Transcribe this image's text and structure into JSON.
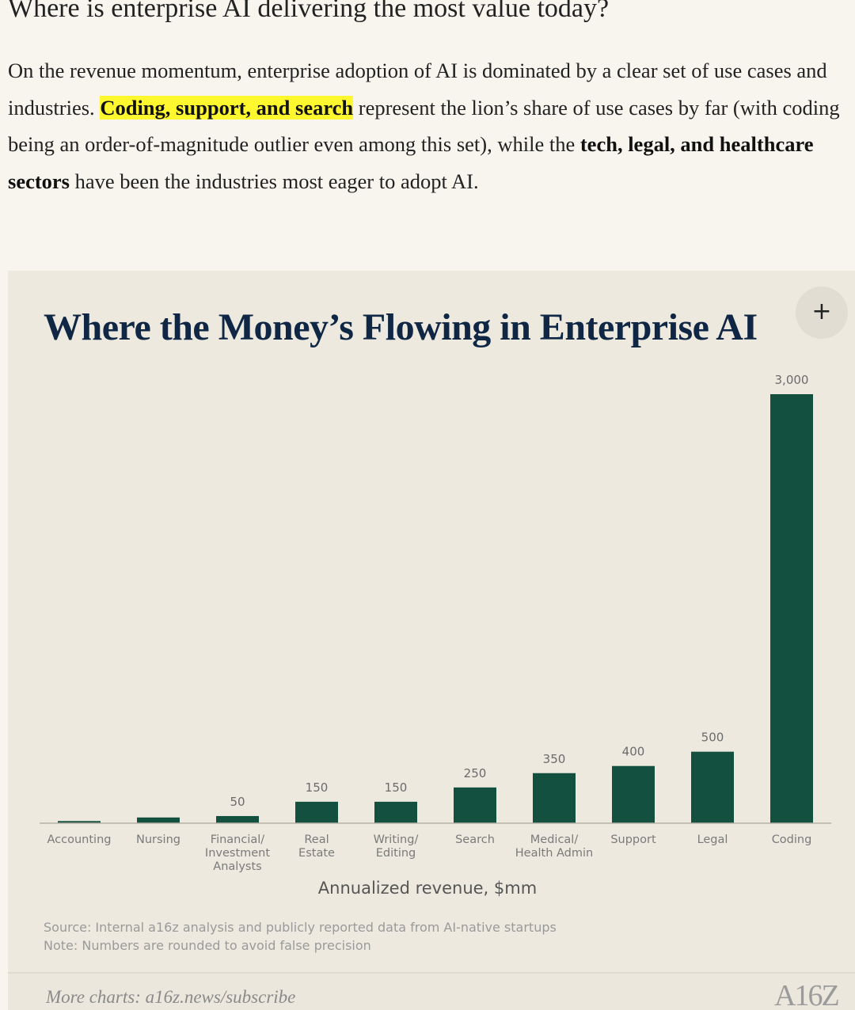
{
  "heading": "Where is enterprise AI delivering the most value today?",
  "paragraph": [
    "On the revenue momentum, enterprise adoption of AI is dominated by a clear set of use cases and industries. ",
    "Coding, support, and search",
    " represent the lion’s share of use cases by far (with coding being an order-of-magnitude outlier even among this set), while the ",
    "tech, legal, and healthcare sectors",
    " have been the industries most eager to adopt AI."
  ],
  "chart_data": {
    "type": "bar",
    "title": "Where the Money’s Flowing in Enterprise AI",
    "x_label": "Annualized revenue, $mm",
    "categories": [
      "Accounting",
      "Nursing",
      "Financial/\nInvestment\nAnalysts",
      "Real\nEstate",
      "Writing/\nEditing",
      "Search",
      "Medical/\nHealth Admin",
      "Support",
      "Legal",
      "Coding"
    ],
    "values": [
      15,
      40,
      50,
      150,
      150,
      250,
      350,
      400,
      500,
      3000
    ],
    "value_labels": [
      null,
      null,
      "50",
      "150",
      "150",
      "250",
      "350",
      "400",
      "500",
      "3,000"
    ],
    "color": "#14503f",
    "ylim": [
      0,
      3000
    ],
    "source": "Source: Internal a16z analysis and publicly reported data from AI-native startups",
    "note": "Note: Numbers are rounded to avoid false precision"
  },
  "footer": "More charts: a16z.news/subscribe",
  "logo": "A16Z"
}
